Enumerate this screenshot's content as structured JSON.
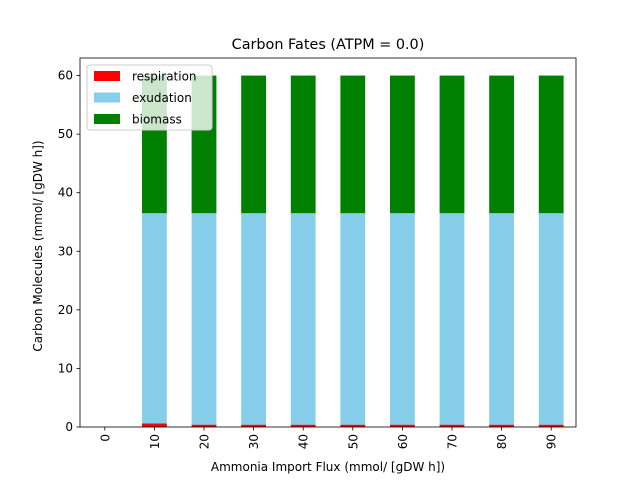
{
  "chart_data": {
    "type": "bar",
    "stacked": true,
    "title": "Carbon Fates (ATPM = 0.0)",
    "xlabel": "Ammonia Import Flux (mmol/ [gDW h])",
    "ylabel": "Carbon Molecules (mmol/ [gDW h])",
    "categories": [
      "0",
      "10",
      "20",
      "30",
      "40",
      "50",
      "60",
      "70",
      "80",
      "90"
    ],
    "series": [
      {
        "name": "respiration",
        "color": "#ff0000",
        "values": [
          0,
          0.6,
          0.4,
          0.4,
          0.4,
          0.4,
          0.4,
          0.4,
          0.4,
          0.4
        ]
      },
      {
        "name": "exudation",
        "color": "#87ceeb",
        "values": [
          0,
          35.9,
          36.1,
          36.1,
          36.1,
          36.1,
          36.1,
          36.1,
          36.1,
          36.1
        ]
      },
      {
        "name": "biomass",
        "color": "#008000",
        "values": [
          0,
          23.5,
          23.5,
          23.5,
          23.5,
          23.5,
          23.5,
          23.5,
          23.5,
          23.5
        ]
      }
    ],
    "ylim": [
      0,
      63
    ],
    "yticks": [
      0,
      10,
      20,
      30,
      40,
      50,
      60
    ],
    "xtick_rotation": 90,
    "legend_position": "upper-left",
    "grid": false
  }
}
